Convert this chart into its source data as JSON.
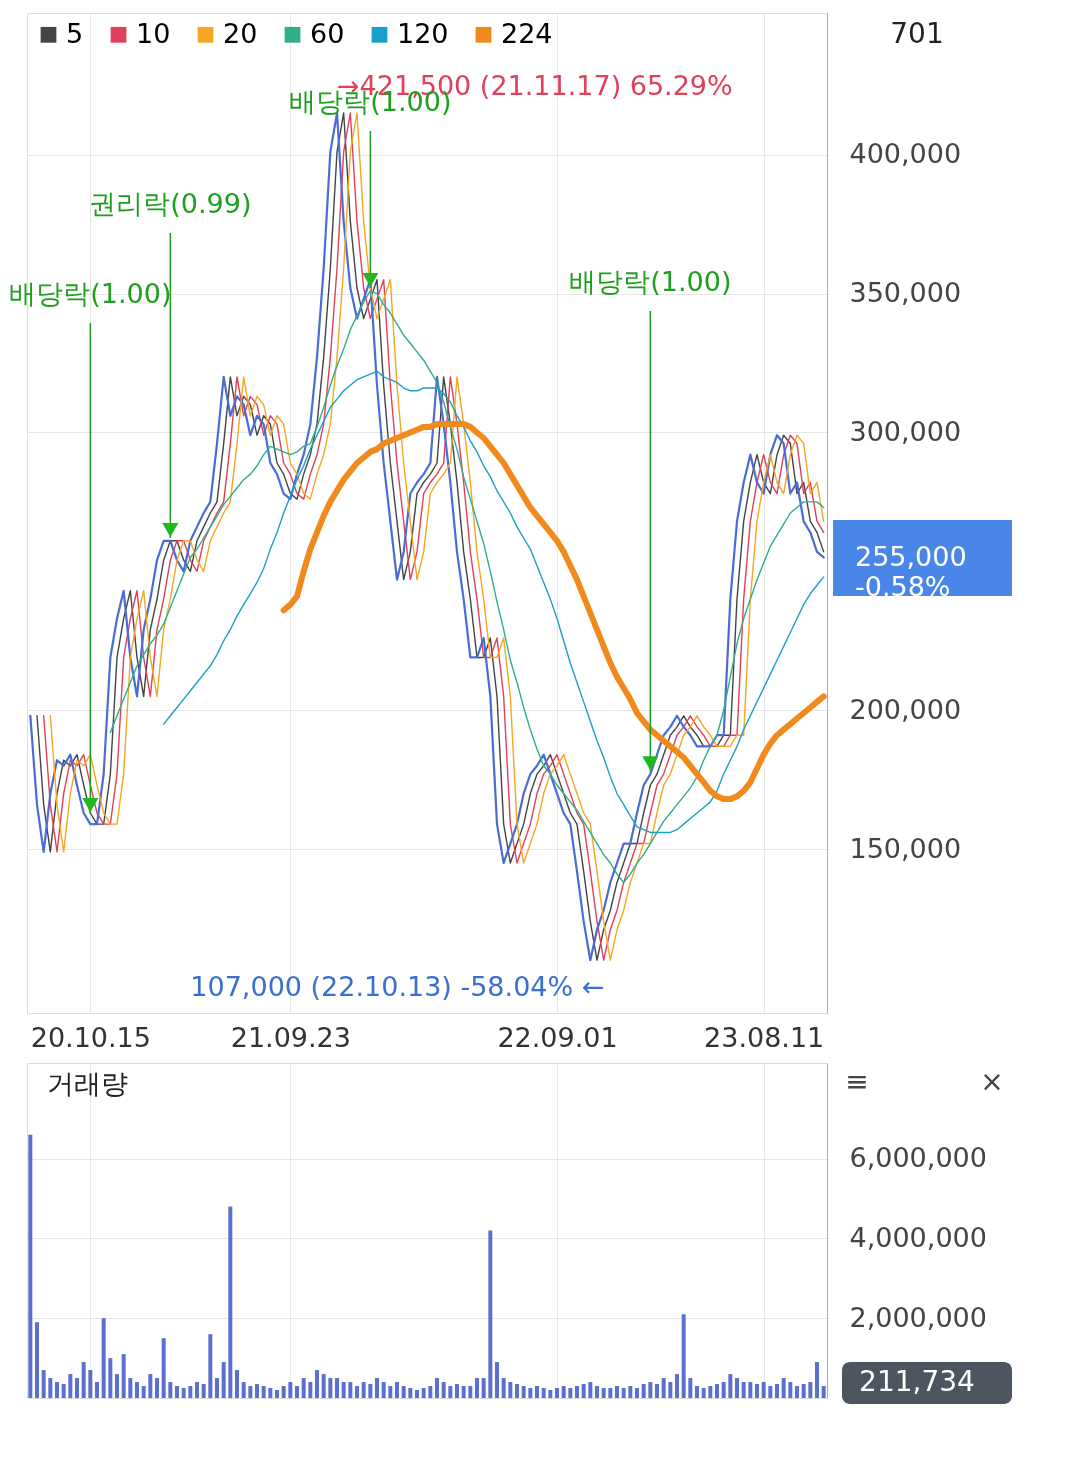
{
  "chart_data": [
    {
      "type": "line",
      "categories": [
        null,
        null,
        null,
        null,
        null,
        null,
        null,
        null,
        null,
        "20.10.15",
        null,
        null,
        null,
        null,
        null,
        null,
        null,
        null,
        null,
        null,
        null,
        null,
        null,
        null,
        null,
        null,
        null,
        null,
        null,
        null,
        null,
        null,
        null,
        null,
        null,
        null,
        null,
        null,
        null,
        "21.09.23",
        null,
        null,
        null,
        null,
        null,
        null,
        null,
        null,
        null,
        null,
        null,
        null,
        null,
        null,
        null,
        null,
        null,
        null,
        null,
        null,
        null,
        null,
        null,
        null,
        null,
        null,
        null,
        null,
        null,
        null,
        null,
        null,
        null,
        null,
        null,
        null,
        null,
        null,
        null,
        "22.09.01",
        null,
        null,
        null,
        null,
        null,
        null,
        null,
        null,
        null,
        null,
        null,
        null,
        null,
        null,
        null,
        null,
        null,
        null,
        null,
        null,
        null,
        null,
        null,
        null,
        null,
        null,
        null,
        null,
        null,
        null,
        "23.08.11",
        null,
        null,
        null,
        null,
        null,
        null,
        null,
        null,
        null
      ],
      "ylim": [
        91000,
        451000
      ],
      "yticks": [
        {
          "value": 150000,
          "label": "150,000"
        },
        {
          "value": 200000,
          "label": "200,000"
        },
        {
          "value": 300000,
          "label": "300,000"
        },
        {
          "value": 350000,
          "label": "350,000"
        },
        {
          "value": 400000,
          "label": "400,000"
        }
      ],
      "grid": true,
      "legend": "top left",
      "series": [
        {
          "name": "5",
          "color": "#444444",
          "values": [
            null,
            198000,
            166000,
            149000,
            170000,
            182000,
            180000,
            184000,
            173000,
            163000,
            159000,
            159000,
            177000,
            219000,
            233000,
            243000,
            219000,
            205000,
            229000,
            240000,
            254000,
            261000,
            261000,
            254000,
            250000,
            261000,
            266000,
            271000,
            275000,
            296000,
            320000,
            306000,
            313000,
            310000,
            299000,
            306000,
            303000,
            289000,
            285000,
            278000,
            276000,
            285000,
            292000,
            303000,
            327000,
            359000,
            401000,
            415000,
            376000,
            352000,
            341000,
            348000,
            355000,
            317000,
            289000,
            268000,
            247000,
            257000,
            278000,
            282000,
            285000,
            289000,
            320000,
            303000,
            282000,
            257000,
            240000,
            219000,
            219000,
            226000,
            205000,
            159000,
            145000,
            152000,
            159000,
            170000,
            177000,
            180000,
            184000,
            177000,
            170000,
            163000,
            159000,
            142000,
            124000,
            110000,
            121000,
            128000,
            138000,
            145000,
            152000,
            152000,
            163000,
            173000,
            177000,
            184000,
            191000,
            194000,
            198000,
            194000,
            191000,
            187000,
            187000,
            187000,
            191000,
            191000,
            240000,
            268000,
            282000,
            292000,
            282000,
            278000,
            292000,
            299000,
            296000,
            278000,
            282000,
            268000,
            264000,
            257000
          ]
        },
        {
          "name": "10",
          "color": "#e0405a",
          "values": [
            null,
            null,
            198000,
            166000,
            149000,
            170000,
            182000,
            180000,
            184000,
            173000,
            163000,
            159000,
            159000,
            177000,
            219000,
            233000,
            243000,
            219000,
            205000,
            229000,
            240000,
            254000,
            261000,
            261000,
            254000,
            250000,
            261000,
            266000,
            271000,
            275000,
            296000,
            320000,
            306000,
            313000,
            310000,
            299000,
            306000,
            303000,
            289000,
            285000,
            278000,
            276000,
            285000,
            292000,
            303000,
            327000,
            359000,
            401000,
            415000,
            376000,
            352000,
            341000,
            348000,
            355000,
            317000,
            289000,
            268000,
            247000,
            257000,
            278000,
            282000,
            285000,
            289000,
            320000,
            303000,
            282000,
            257000,
            240000,
            219000,
            219000,
            226000,
            205000,
            159000,
            145000,
            152000,
            159000,
            170000,
            177000,
            180000,
            184000,
            177000,
            170000,
            163000,
            159000,
            142000,
            124000,
            110000,
            121000,
            128000,
            138000,
            145000,
            152000,
            152000,
            163000,
            173000,
            177000,
            184000,
            191000,
            194000,
            198000,
            194000,
            191000,
            187000,
            187000,
            187000,
            191000,
            191000,
            240000,
            268000,
            282000,
            292000,
            282000,
            278000,
            292000,
            299000,
            296000,
            278000,
            282000,
            268000,
            264000
          ]
        },
        {
          "color": "#4a6cd4",
          "values": [
            198000,
            166000,
            149000,
            170000,
            182000,
            180000,
            184000,
            173000,
            163000,
            159000,
            159000,
            177000,
            219000,
            233000,
            243000,
            219000,
            205000,
            229000,
            240000,
            254000,
            261000,
            261000,
            254000,
            250000,
            261000,
            266000,
            271000,
            275000,
            296000,
            320000,
            306000,
            313000,
            310000,
            299000,
            306000,
            303000,
            289000,
            285000,
            278000,
            276000,
            285000,
            292000,
            303000,
            327000,
            359000,
            401000,
            415000,
            376000,
            352000,
            341000,
            348000,
            355000,
            317000,
            289000,
            268000,
            247000,
            257000,
            278000,
            282000,
            285000,
            289000,
            320000,
            303000,
            282000,
            257000,
            240000,
            219000,
            219000,
            226000,
            205000,
            159000,
            145000,
            152000,
            159000,
            170000,
            177000,
            180000,
            184000,
            177000,
            170000,
            163000,
            159000,
            142000,
            124000,
            110000,
            121000,
            128000,
            138000,
            145000,
            152000,
            152000,
            163000,
            173000,
            177000,
            184000,
            191000,
            194000,
            198000,
            194000,
            191000,
            187000,
            187000,
            187000,
            191000,
            191000,
            240000,
            268000,
            282000,
            292000,
            282000,
            278000,
            292000,
            299000,
            296000,
            278000,
            282000,
            268000,
            264000,
            257000,
            255000
          ]
        },
        {
          "name": "20",
          "color": "#f5a623",
          "values": [
            null,
            null,
            null,
            198000,
            166000,
            149000,
            170000,
            182000,
            180000,
            184000,
            173000,
            163000,
            159000,
            159000,
            177000,
            219000,
            233000,
            243000,
            219000,
            205000,
            229000,
            240000,
            254000,
            261000,
            261000,
            254000,
            250000,
            261000,
            266000,
            271000,
            275000,
            296000,
            320000,
            306000,
            313000,
            310000,
            299000,
            306000,
            303000,
            289000,
            285000,
            278000,
            276000,
            285000,
            292000,
            303000,
            327000,
            359000,
            401000,
            415000,
            376000,
            352000,
            341000,
            348000,
            355000,
            317000,
            289000,
            268000,
            247000,
            257000,
            278000,
            282000,
            285000,
            289000,
            320000,
            303000,
            282000,
            257000,
            240000,
            219000,
            219000,
            226000,
            205000,
            159000,
            145000,
            152000,
            159000,
            170000,
            177000,
            180000,
            184000,
            177000,
            170000,
            163000,
            159000,
            142000,
            124000,
            110000,
            121000,
            128000,
            138000,
            145000,
            152000,
            152000,
            163000,
            173000,
            177000,
            184000,
            191000,
            194000,
            198000,
            194000,
            191000,
            187000,
            187000,
            187000,
            191000,
            191000,
            240000,
            268000,
            282000,
            292000,
            282000,
            278000,
            292000,
            299000,
            296000,
            278000,
            282000,
            268000
          ]
        },
        {
          "name": "60",
          "color": "#2fae8a",
          "values": [
            null,
            null,
            null,
            null,
            null,
            null,
            null,
            null,
            null,
            null,
            null,
            null,
            192000,
            198000,
            204000,
            210000,
            216000,
            220000,
            224000,
            227000,
            231000,
            237000,
            243000,
            249000,
            255000,
            258000,
            262000,
            266000,
            270000,
            274000,
            277000,
            280000,
            283000,
            285000,
            288000,
            292000,
            295000,
            294000,
            293000,
            292000,
            293000,
            295000,
            296000,
            302000,
            309000,
            317000,
            324000,
            330000,
            337000,
            342000,
            347000,
            351000,
            350000,
            346000,
            343000,
            339000,
            335000,
            332000,
            329000,
            326000,
            322000,
            318000,
            311000,
            302000,
            294000,
            284000,
            276000,
            268000,
            260000,
            250000,
            239000,
            229000,
            218000,
            210000,
            201000,
            193000,
            186000,
            180000,
            177000,
            173000,
            170000,
            167000,
            164000,
            160000,
            156000,
            152000,
            148000,
            145000,
            141000,
            138000,
            141000,
            145000,
            148000,
            152000,
            156000,
            160000,
            163000,
            166000,
            169000,
            172000,
            176000,
            182000,
            187000,
            191000,
            200000,
            212000,
            224000,
            233000,
            240000,
            247000,
            253000,
            259000,
            263000,
            267000,
            271000,
            273000,
            275000,
            275000,
            275000,
            273000
          ]
        },
        {
          "name": "120",
          "color": "#1aa0c8",
          "values": [
            null,
            null,
            null,
            null,
            null,
            null,
            null,
            null,
            null,
            null,
            null,
            null,
            null,
            null,
            null,
            null,
            null,
            null,
            null,
            null,
            195000,
            198000,
            201000,
            204000,
            207000,
            210000,
            213000,
            216000,
            220000,
            225000,
            229000,
            234000,
            238000,
            242000,
            246000,
            251000,
            258000,
            264000,
            271000,
            277000,
            283000,
            288000,
            294000,
            299000,
            304000,
            309000,
            312000,
            315000,
            317000,
            319000,
            320000,
            321000,
            322000,
            320000,
            319000,
            318000,
            316000,
            315000,
            315000,
            316000,
            316000,
            316000,
            314000,
            311000,
            306000,
            302000,
            297000,
            293000,
            288000,
            284000,
            279000,
            275000,
            271000,
            266000,
            262000,
            258000,
            252000,
            246000,
            240000,
            233000,
            225000,
            217000,
            210000,
            203000,
            196000,
            189000,
            183000,
            176000,
            170000,
            166000,
            162000,
            158000,
            157000,
            156000,
            156000,
            156000,
            156000,
            157000,
            159000,
            161000,
            163000,
            165000,
            167000,
            171000,
            177000,
            182000,
            187000,
            193000,
            198000,
            203000,
            208000,
            213000,
            218000,
            223000,
            228000,
            233000,
            238000,
            242000,
            245000,
            248000
          ]
        },
        {
          "name": "224",
          "color": "#f08a1c",
          "values": [
            null,
            null,
            null,
            null,
            null,
            null,
            null,
            null,
            null,
            null,
            null,
            null,
            null,
            null,
            null,
            null,
            null,
            null,
            null,
            null,
            null,
            null,
            null,
            null,
            null,
            null,
            null,
            null,
            null,
            null,
            null,
            null,
            null,
            null,
            null,
            null,
            null,
            null,
            236000,
            238000,
            241000,
            250000,
            258000,
            264000,
            270000,
            275000,
            279000,
            283000,
            286000,
            289000,
            291000,
            293000,
            294000,
            296000,
            297000,
            298000,
            299000,
            300000,
            301000,
            302000,
            302000,
            303000,
            303000,
            303000,
            303000,
            303000,
            302000,
            300000,
            298000,
            295000,
            292000,
            289000,
            285000,
            281000,
            277000,
            273000,
            270000,
            267000,
            264000,
            261000,
            257000,
            252000,
            247000,
            241000,
            235000,
            229000,
            223000,
            217000,
            212000,
            208000,
            204000,
            199000,
            196000,
            193000,
            191000,
            189000,
            187000,
            185000,
            183000,
            180000,
            177000,
            174000,
            171000,
            169000,
            168000,
            168000,
            169000,
            171000,
            174000,
            179000,
            184000,
            188000,
            191000,
            193000,
            195000,
            197000,
            199000,
            201000,
            203000,
            205000
          ]
        }
      ],
      "annotations": [
        "701",
        "→421,500 (21.11.17) 65.29%",
        "107,000 (22.10.13) -58.04%  ←",
        {
          "text": "배당락(1.00)",
          "y": 163000
        },
        {
          "text": "권리락(0.99)",
          "y": 262000
        },
        {
          "text": "배당락(1.00)",
          "y": 352000
        },
        {
          "text": "배당락(1.00)",
          "y": 178000
        },
        "255,000\n-0.58%"
      ]
    },
    {
      "type": "bar",
      "title": "거래량",
      "categories": [
        null,
        null,
        null,
        null,
        null,
        null,
        null,
        null,
        null,
        "20.10.15",
        null,
        null,
        null,
        null,
        null,
        null,
        null,
        null,
        null,
        null,
        null,
        null,
        null,
        null,
        null,
        null,
        null,
        null,
        null,
        null,
        null,
        null,
        null,
        null,
        null,
        null,
        null,
        null,
        null,
        "21.09.23",
        null,
        null,
        null,
        null,
        null,
        null,
        null,
        null,
        null,
        null,
        null,
        null,
        null,
        null,
        null,
        null,
        null,
        null,
        null,
        null,
        null,
        null,
        null,
        null,
        null,
        null,
        null,
        null,
        null,
        null,
        null,
        null,
        null,
        null,
        null,
        null,
        null,
        null,
        null,
        "22.09.01",
        null,
        null,
        null,
        null,
        null,
        null,
        null,
        null,
        null,
        null,
        null,
        null,
        null,
        null,
        null,
        null,
        null,
        null,
        null,
        null,
        null,
        null,
        null,
        null,
        null,
        null,
        null,
        null,
        null,
        null,
        "23.08.11",
        null,
        null,
        null,
        null,
        null,
        null,
        null,
        null,
        null
      ],
      "ylim": [
        0,
        8400000
      ],
      "yticks": [
        {
          "value": 2000000,
          "label": "2,000,000"
        },
        {
          "value": 4000000,
          "label": "4,000,000"
        },
        {
          "value": 6000000,
          "label": "6,000,000"
        }
      ],
      "grid": true,
      "tick_labels": "y",
      "series": [
        {
          "color": "#5b6fd0",
          "values": [
            6600000,
            1900000,
            700000,
            500000,
            400000,
            350000,
            600000,
            500000,
            900000,
            700000,
            400000,
            2000000,
            1000000,
            600000,
            1100000,
            500000,
            400000,
            300000,
            600000,
            500000,
            1500000,
            400000,
            300000,
            250000,
            300000,
            400000,
            350000,
            1600000,
            500000,
            900000,
            4800000,
            700000,
            400000,
            300000,
            350000,
            300000,
            250000,
            200000,
            300000,
            400000,
            300000,
            500000,
            400000,
            700000,
            600000,
            500000,
            500000,
            400000,
            400000,
            300000,
            400000,
            350000,
            500000,
            400000,
            300000,
            400000,
            300000,
            250000,
            200000,
            250000,
            300000,
            500000,
            400000,
            300000,
            350000,
            300000,
            300000,
            500000,
            500000,
            4200000,
            900000,
            500000,
            400000,
            350000,
            300000,
            250000,
            300000,
            250000,
            200000,
            250000,
            300000,
            250000,
            300000,
            350000,
            400000,
            300000,
            250000,
            250000,
            300000,
            250000,
            300000,
            250000,
            350000,
            400000,
            350000,
            500000,
            400000,
            600000,
            2100000,
            500000,
            300000,
            250000,
            300000,
            350000,
            400000,
            600000,
            500000,
            400000,
            400000,
            350000,
            400000,
            300000,
            350000,
            500000,
            400000,
            300000,
            350000,
            400000,
            900000,
            300000
          ]
        }
      ],
      "annotations": [
        "211,734",
        "≡",
        "×"
      ]
    }
  ]
}
